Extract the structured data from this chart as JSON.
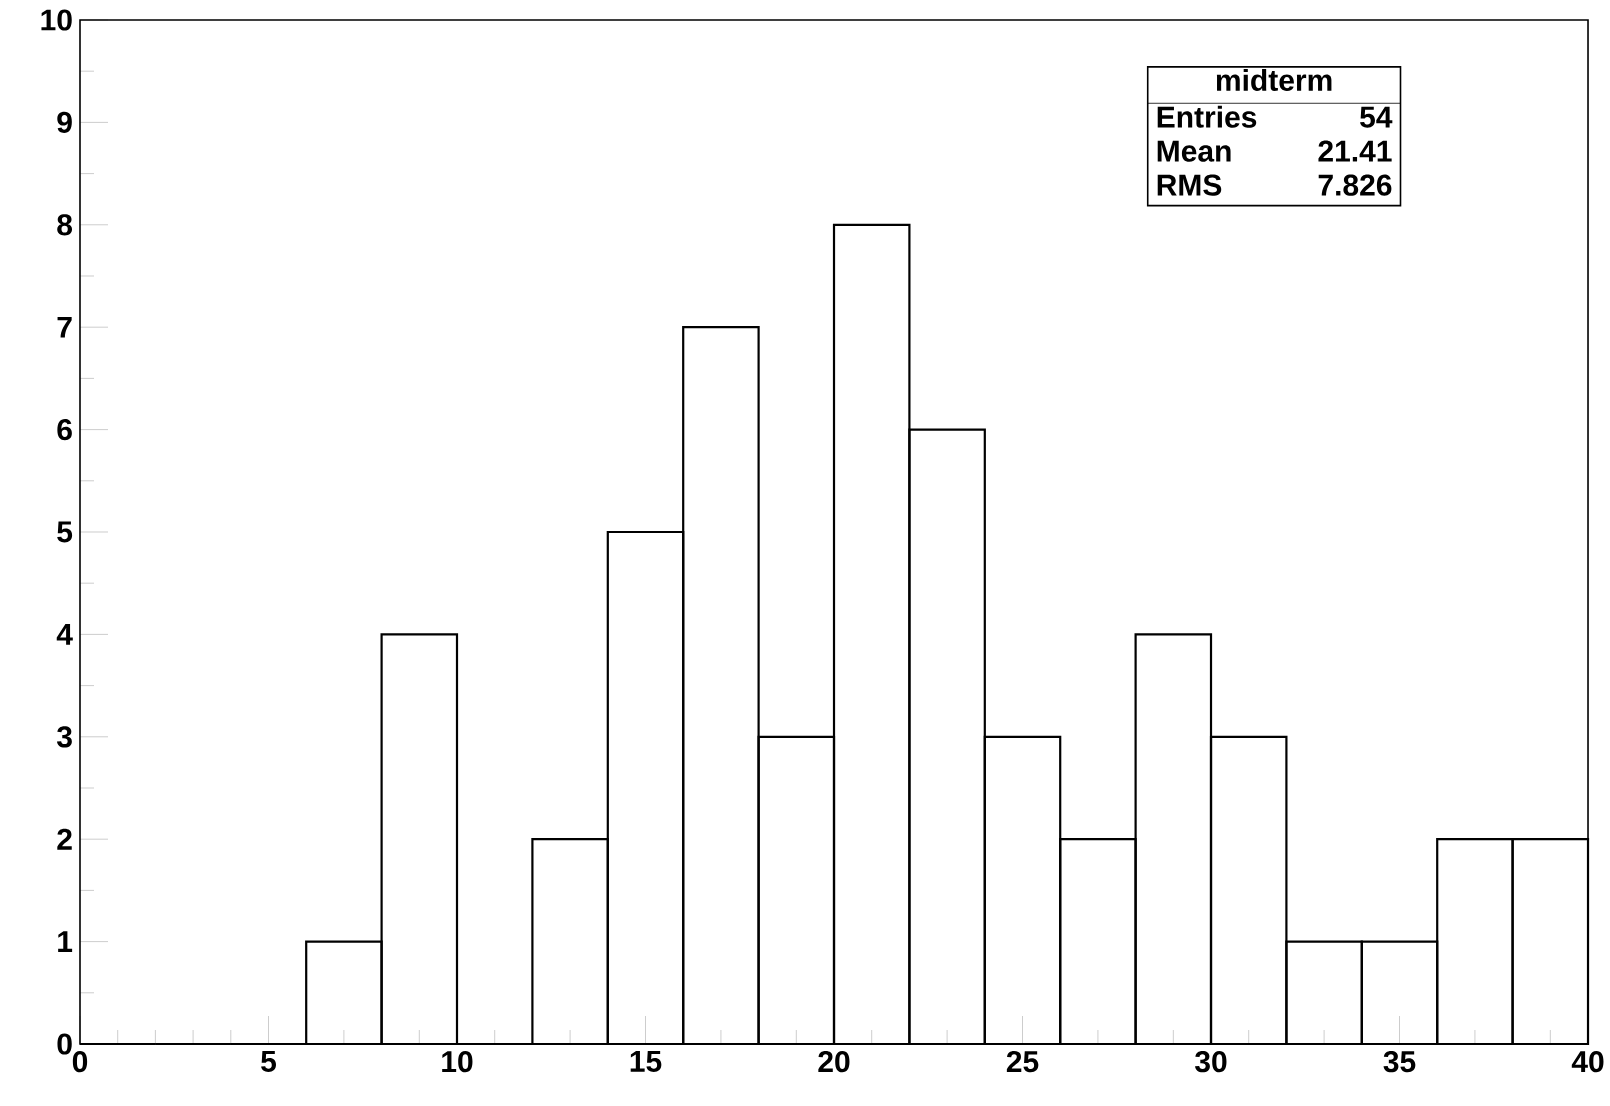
{
  "chart_data": {
    "type": "histogram",
    "bins": [
      0,
      2,
      4,
      6,
      8,
      10,
      12,
      14,
      16,
      18,
      20,
      22,
      24,
      26,
      28,
      30,
      32,
      34,
      36,
      38,
      40
    ],
    "values": [
      0,
      0,
      0,
      1,
      4,
      0,
      2,
      5,
      7,
      3,
      8,
      6,
      3,
      2,
      4,
      3,
      1,
      1,
      2,
      2
    ],
    "color": "#000000",
    "xlim": [
      0,
      40
    ],
    "ylim": [
      0,
      10
    ],
    "xticks": [
      0,
      5,
      10,
      15,
      20,
      25,
      30,
      35,
      40
    ],
    "yticks": [
      0,
      1,
      2,
      3,
      4,
      5,
      6,
      7,
      8,
      9,
      10
    ],
    "grid": false,
    "annotations": [
      "midterm",
      "Entries",
      "54",
      "Mean",
      "21.41",
      "RMS",
      "7.826"
    ]
  }
}
